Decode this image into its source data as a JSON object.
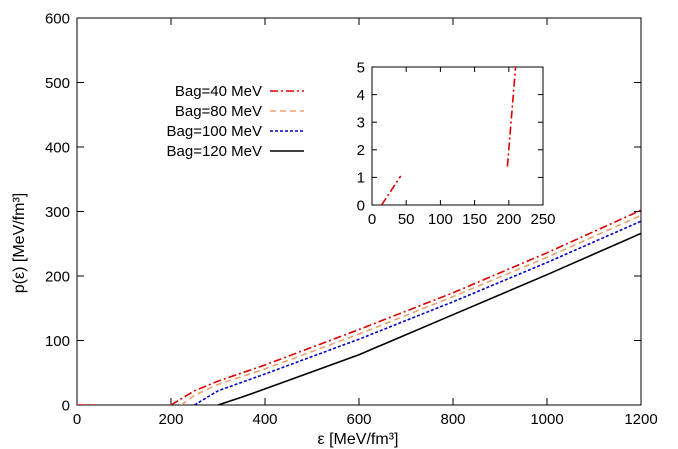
{
  "chart_data": [
    {
      "type": "line",
      "xlabel": "ε [MeV/fm³]",
      "ylabel": "p(ε) [MeV/fm³]",
      "xlim": [
        0,
        1200
      ],
      "ylim": [
        0,
        600
      ],
      "xticks": [
        "0",
        "200",
        "400",
        "600",
        "800",
        "1000",
        "1200"
      ],
      "yticks": [
        "0",
        "100",
        "200",
        "300",
        "400",
        "500",
        "600"
      ],
      "legend_placement": "upper-left",
      "grid": false,
      "series": [
        {
          "name": "Bag=40 MeV",
          "color": "#dd0000",
          "dash": "dash-dot",
          "points": [
            [
              0,
              0
            ],
            [
              40,
              0
            ]
          ],
          "points2": [
            [
              200,
              0
            ],
            [
              250,
              22
            ],
            [
              300,
              37
            ],
            [
              400,
              62
            ],
            [
              600,
              117
            ],
            [
              800,
              174
            ],
            [
              1000,
              236
            ],
            [
              1200,
              302
            ]
          ]
        },
        {
          "name": "Bag=80 MeV",
          "color": "#e8a070",
          "dash": "dashed",
          "points": [
            [
              222,
              0
            ],
            [
              250,
              15
            ],
            [
              300,
              32
            ],
            [
              400,
              56
            ],
            [
              600,
              110
            ],
            [
              800,
              168
            ],
            [
              1000,
              229
            ],
            [
              1200,
              294
            ]
          ]
        },
        {
          "name": "Bag=100 MeV",
          "color": "#0000cc",
          "dash": "dotted",
          "points": [
            [
              250,
              0
            ],
            [
              300,
              22
            ],
            [
              400,
              48
            ],
            [
              600,
              102
            ],
            [
              800,
              160
            ],
            [
              1000,
              221
            ],
            [
              1200,
              285
            ]
          ]
        },
        {
          "name": "Bag=120 MeV",
          "color": "#000000",
          "dash": "solid",
          "points": [
            [
              300,
              0
            ],
            [
              350,
              12
            ],
            [
              400,
              25
            ],
            [
              600,
              78
            ],
            [
              800,
              140
            ],
            [
              1000,
              202
            ],
            [
              1200,
              266
            ]
          ]
        }
      ]
    },
    {
      "type": "line",
      "title": "",
      "xlim": [
        0,
        250
      ],
      "ylim": [
        0,
        5
      ],
      "xticks": [
        "0",
        "50",
        "100",
        "150",
        "200",
        "250"
      ],
      "yticks": [
        "0",
        "1",
        "2",
        "3",
        "4",
        "5"
      ],
      "series": [
        {
          "color": "#dd0000",
          "dash": "dash-dot",
          "points": [
            [
              14,
              0
            ],
            [
              42,
              1.05
            ]
          ],
          "points2": [
            [
              198,
              1.4
            ],
            [
              210,
              5
            ]
          ]
        }
      ]
    }
  ]
}
